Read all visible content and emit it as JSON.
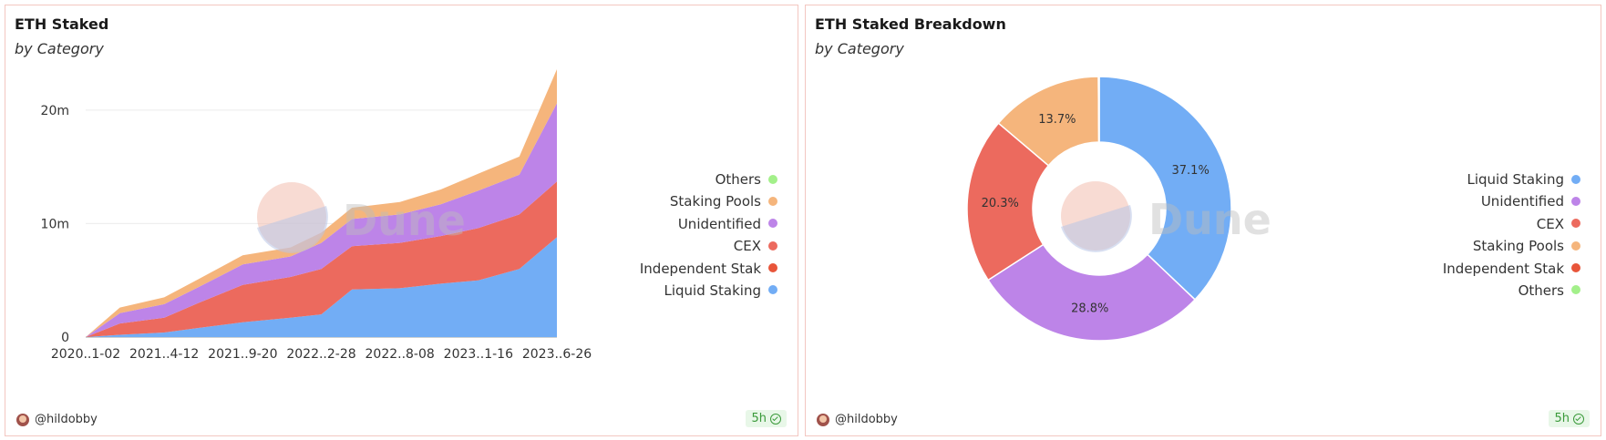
{
  "panels": [
    {
      "title": "ETH Staked",
      "subtitle": "by Category",
      "user": "@hildobby",
      "age": "5h"
    },
    {
      "title": "ETH Staked Breakdown",
      "subtitle": "by Category",
      "user": "@hildobby",
      "age": "5h"
    }
  ],
  "watermark": "Dune",
  "colors": {
    "Others": "#a3f08a",
    "Staking Pools": "#f5b57c",
    "Unidentified": "#bd84e8",
    "CEX": "#ec6a5e",
    "Independent Stakers": "#e8553a",
    "Liquid Staking": "#72adf5"
  },
  "chart_data": [
    {
      "type": "area",
      "stacked": true,
      "title": "ETH Staked",
      "subtitle": "by Category",
      "x_tick_labels": [
        "2020..1-02",
        "2021..4-12",
        "2021..9-20",
        "2022..2-28",
        "2022..8-08",
        "2023..1-16",
        "2023..6-26"
      ],
      "y_tick_labels": [
        "0",
        "10m",
        "20m"
      ],
      "ylim": [
        0,
        24000000
      ],
      "grid": true,
      "legend_position": "right",
      "legend": [
        "Others",
        "Staking Pools",
        "Unidentified",
        "CEX",
        "Independent Stak",
        "Liquid Staking"
      ],
      "x": [
        "2020-11-02",
        "2021-01-11",
        "2021-04-12",
        "2021-06-21",
        "2021-09-20",
        "2021-12-27",
        "2022-02-28",
        "2022-05-02",
        "2022-08-08",
        "2022-10-31",
        "2023-01-16",
        "2023-04-10",
        "2023-06-26"
      ],
      "series": [
        {
          "name": "Liquid Staking",
          "values": [
            0,
            200000,
            400000,
            800000,
            1300000,
            1700000,
            2000000,
            4200000,
            4300000,
            4700000,
            5000000,
            6000000,
            8800000
          ]
        },
        {
          "name": "Independent Stak",
          "values": [
            0,
            0,
            0,
            0,
            0,
            0,
            0,
            0,
            0,
            0,
            0,
            0,
            0
          ]
        },
        {
          "name": "CEX",
          "values": [
            0,
            1000000,
            1300000,
            2200000,
            3300000,
            3600000,
            4000000,
            3800000,
            4000000,
            4200000,
            4600000,
            4800000,
            4900000
          ]
        },
        {
          "name": "Unidentified",
          "values": [
            0,
            900000,
            1200000,
            1400000,
            1800000,
            1800000,
            2300000,
            2400000,
            2500000,
            2800000,
            3300000,
            3500000,
            6900000
          ]
        },
        {
          "name": "Staking Pools",
          "values": [
            0,
            500000,
            600000,
            700000,
            800000,
            800000,
            900000,
            1000000,
            1100000,
            1300000,
            1500000,
            1600000,
            3000000
          ]
        },
        {
          "name": "Others",
          "values": [
            0,
            0,
            0,
            0,
            0,
            0,
            0,
            0,
            0,
            0,
            0,
            0,
            0
          ]
        }
      ]
    },
    {
      "type": "pie",
      "donut": true,
      "title": "ETH Staked Breakdown",
      "subtitle": "by Category",
      "legend_position": "right",
      "legend": [
        "Liquid Staking",
        "Unidentified",
        "CEX",
        "Staking Pools",
        "Independent Stak",
        "Others"
      ],
      "slices": [
        {
          "name": "Liquid Staking",
          "value": 37.1,
          "label": "37.1%"
        },
        {
          "name": "Unidentified",
          "value": 28.8,
          "label": "28.8%"
        },
        {
          "name": "CEX",
          "value": 20.3,
          "label": "20.3%"
        },
        {
          "name": "Staking Pools",
          "value": 13.7,
          "label": "13.7%"
        },
        {
          "name": "Independent Stak",
          "value": 0.06,
          "label": ""
        },
        {
          "name": "Others",
          "value": 0.04,
          "label": ""
        }
      ]
    }
  ]
}
